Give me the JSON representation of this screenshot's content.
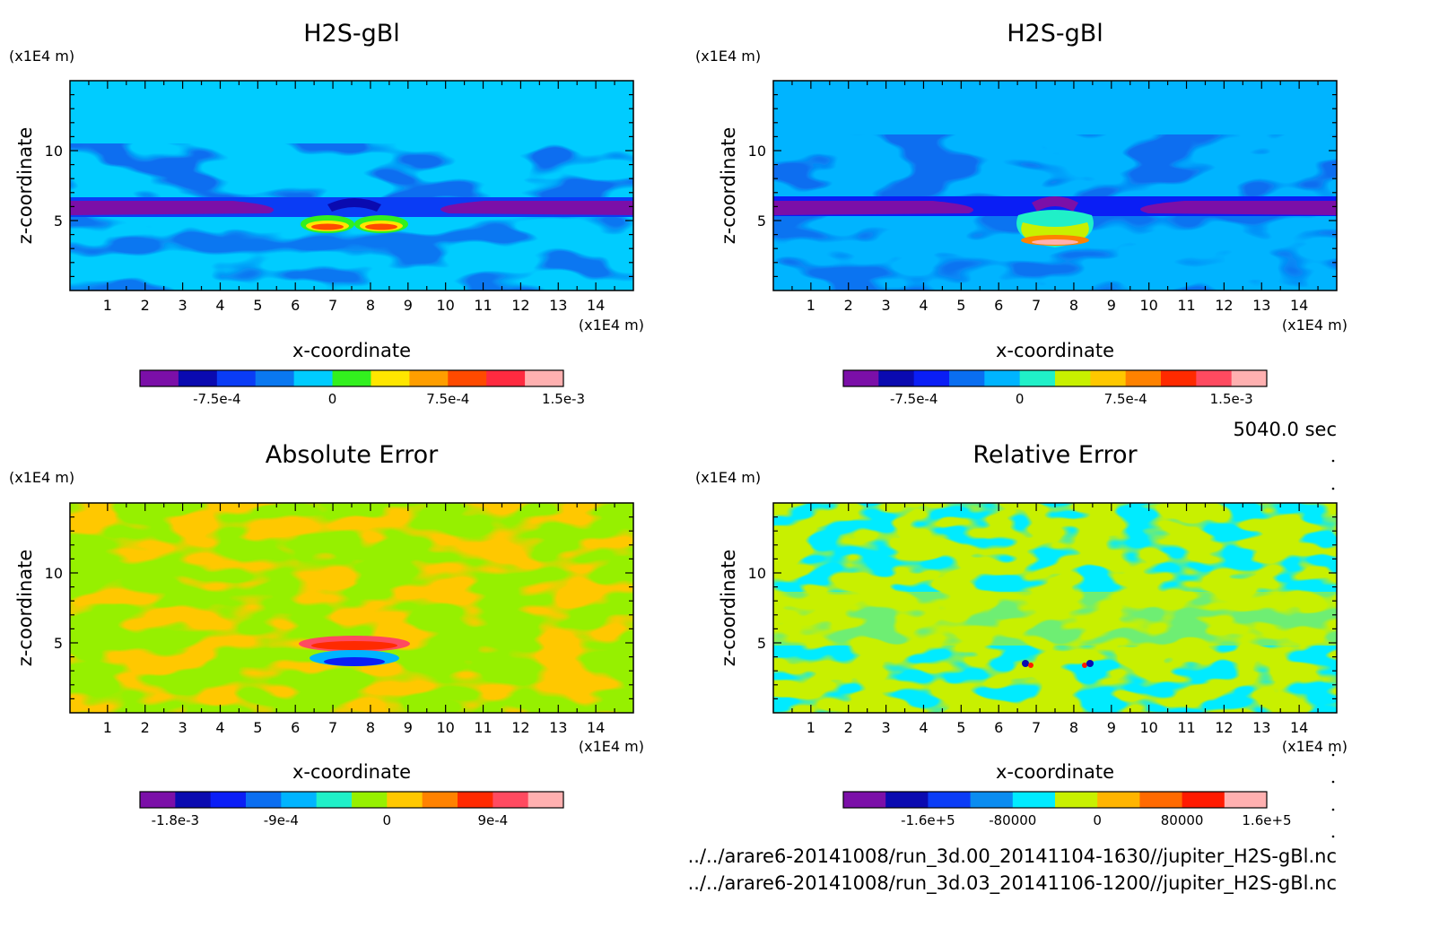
{
  "time_label": "5040.0 sec",
  "file_paths": [
    "../../arare6-20141008/run_3d.00_20141104-1630//jupiter_H2S-gBl.nc",
    "../../arare6-20141008/run_3d.03_20141106-1200//jupiter_H2S-gBl.nc"
  ],
  "chart_data": [
    {
      "type": "heatmap",
      "title": "H2S-gBl",
      "xlabel": "x-coordinate",
      "ylabel": "z-coordinate",
      "x_unit": "(x1E4 m)",
      "y_unit": "(x1E4 m)",
      "xlim": [
        0,
        15
      ],
      "ylim": [
        0,
        15
      ],
      "x_ticks": [
        1,
        2,
        3,
        4,
        5,
        6,
        7,
        8,
        9,
        10,
        11,
        12,
        13,
        14
      ],
      "y_ticks": [
        5,
        10
      ],
      "colorbar": {
        "colors": [
          "#7b0fa8",
          "#0a0ab0",
          "#0a3cf5",
          "#0a78f0",
          "#00ccff",
          "#32f01e",
          "#ffe600",
          "#ff9e00",
          "#ff4a00",
          "#ff2a40",
          "#ffb0b0"
        ],
        "tick_labels": [
          "-7.5e-4",
          "0",
          "7.5e-4",
          "1.5e-3"
        ],
        "tick_positions": [
          1,
          4,
          7,
          10
        ]
      }
    },
    {
      "type": "heatmap",
      "title": "H2S-gBl",
      "xlabel": "x-coordinate",
      "ylabel": "z-coordinate",
      "x_unit": "(x1E4 m)",
      "y_unit": "(x1E4 m)",
      "xlim": [
        0,
        15
      ],
      "ylim": [
        0,
        15
      ],
      "x_ticks": [
        1,
        2,
        3,
        4,
        5,
        6,
        7,
        8,
        9,
        10,
        11,
        12,
        13,
        14
      ],
      "y_ticks": [
        5,
        10
      ],
      "colorbar": {
        "colors": [
          "#7b0fa8",
          "#0a0ab0",
          "#0a1ef5",
          "#0a6ef0",
          "#00b4ff",
          "#20f0c8",
          "#c8f000",
          "#ffc800",
          "#ff8200",
          "#ff2a00",
          "#ff4a60",
          "#ffb0b0"
        ],
        "tick_labels": [
          "-7.5e-4",
          "0",
          "7.5e-4",
          "1.5e-3"
        ],
        "tick_positions": [
          1,
          4,
          7,
          10
        ]
      }
    },
    {
      "type": "heatmap",
      "title": "Absolute Error",
      "xlabel": "x-coordinate",
      "ylabel": "z-coordinate",
      "x_unit": "(x1E4 m)",
      "y_unit": "(x1E4 m)",
      "xlim": [
        0,
        15
      ],
      "ylim": [
        0,
        15
      ],
      "x_ticks": [
        1,
        2,
        3,
        4,
        5,
        6,
        7,
        8,
        9,
        10,
        11,
        12,
        13,
        14
      ],
      "y_ticks": [
        5,
        10
      ],
      "colorbar": {
        "colors": [
          "#7b0fa8",
          "#0a0ab0",
          "#0a1ef5",
          "#0a6ef0",
          "#00b4ff",
          "#20f0c8",
          "#96f000",
          "#ffc800",
          "#ff8200",
          "#ff2a00",
          "#ff4a60",
          "#ffb0b0"
        ],
        "tick_labels": [
          "-1.8e-3",
          "-9e-4",
          "0",
          "9e-4"
        ],
        "tick_positions": [
          0,
          3,
          6,
          9
        ]
      }
    },
    {
      "type": "heatmap",
      "title": "Relative Error",
      "xlabel": "x-coordinate",
      "ylabel": "z-coordinate",
      "x_unit": "(x1E4 m)",
      "y_unit": "(x1E4 m)",
      "xlim": [
        0,
        15
      ],
      "ylim": [
        0,
        15
      ],
      "x_ticks": [
        1,
        2,
        3,
        4,
        5,
        6,
        7,
        8,
        9,
        10,
        11,
        12,
        13,
        14
      ],
      "y_ticks": [
        5,
        10
      ],
      "colorbar": {
        "colors": [
          "#7b0fa8",
          "#0a0ab0",
          "#0a3cf5",
          "#0a8cf0",
          "#00ebff",
          "#c8f000",
          "#ffb400",
          "#ff6a00",
          "#ff1a00",
          "#ffb0b0"
        ],
        "tick_labels": [
          "-1.6e+5",
          "-80000",
          "0",
          "80000",
          "1.6e+5"
        ],
        "tick_positions": [
          1,
          3,
          5,
          7,
          9
        ]
      }
    }
  ]
}
